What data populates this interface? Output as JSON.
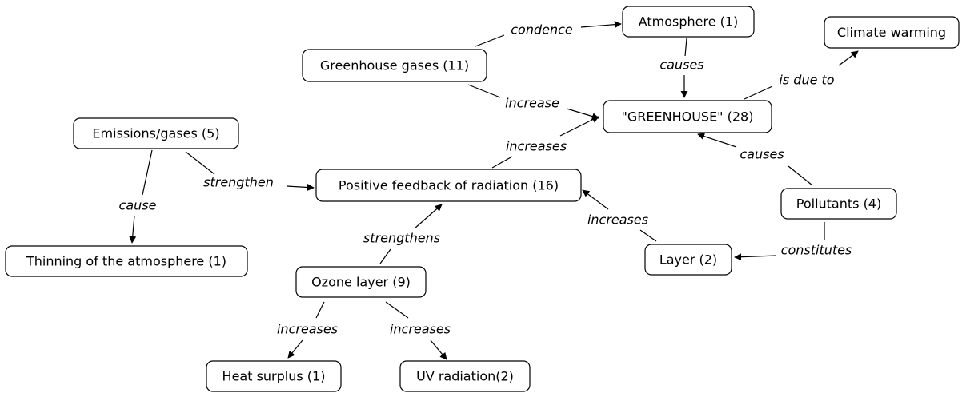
{
  "nodes": [
    {
      "label": "Atmosphere (1)"
    },
    {
      "label": "Climate warming"
    },
    {
      "label": "Greenhouse gases (11)"
    },
    {
      "label": "\"GREENHOUSE\" (28)"
    },
    {
      "label": "Emissions/gases (5)"
    },
    {
      "label": "Positive feedback of radiation (16)"
    },
    {
      "label": "Pollutants (4)"
    },
    {
      "label": "Thinning of the atmosphere (1)"
    },
    {
      "label": "Layer (2)"
    },
    {
      "label": "Ozone layer (9)"
    },
    {
      "label": "Heat surplus (1)"
    },
    {
      "label": "UV radiation(2)"
    }
  ],
  "edges": [
    {
      "label": "condence"
    },
    {
      "label": "causes"
    },
    {
      "label": "is due to"
    },
    {
      "label": "increase"
    },
    {
      "label": "increases"
    },
    {
      "label": "strengthen"
    },
    {
      "label": "cause"
    },
    {
      "label": "causes"
    },
    {
      "label": "increases"
    },
    {
      "label": "constitutes"
    },
    {
      "label": "strengthens"
    },
    {
      "label": "increases"
    },
    {
      "label": "increases"
    }
  ]
}
